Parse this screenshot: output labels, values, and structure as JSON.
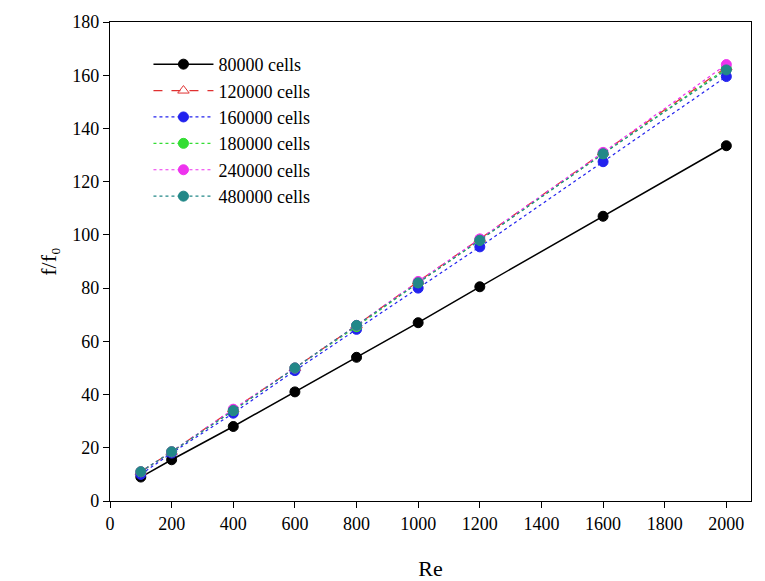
{
  "chart_data": {
    "type": "line",
    "x_label": "Re",
    "y_label": "f/f₀",
    "x": [
      100,
      200,
      400,
      600,
      800,
      1000,
      1200,
      1600,
      2000
    ],
    "series": [
      {
        "name": "80000 cells",
        "color": "#000000",
        "line_style": "solid",
        "marker": "circle",
        "values": [
          9,
          15.5,
          28,
          41,
          54,
          67,
          80.5,
          107,
          133.5
        ]
      },
      {
        "name": "120000 cells",
        "color": "#e03030",
        "line_style": "dash",
        "marker": "triangle-up-open",
        "values": [
          11,
          18.5,
          34.5,
          50,
          66,
          82.5,
          98.5,
          131,
          163
        ]
      },
      {
        "name": "160000 cells",
        "color": "#2222ee",
        "line_style": "dot",
        "marker": "circle",
        "values": [
          10,
          18,
          33,
          49,
          64.5,
          80,
          95.5,
          127.5,
          159.5
        ]
      },
      {
        "name": "180000 cells",
        "color": "#33dd33",
        "line_style": "dot",
        "marker": "circle",
        "values": [
          11,
          18.5,
          34,
          50,
          65.5,
          82,
          98,
          130.5,
          162.5
        ]
      },
      {
        "name": "240000 cells",
        "color": "#ee33ee",
        "line_style": "dot",
        "marker": "circle",
        "values": [
          11,
          18.5,
          34.5,
          50,
          66,
          82.5,
          98.5,
          131,
          164
        ]
      },
      {
        "name": "480000 cells",
        "color": "#228888",
        "line_style": "dot",
        "marker": "circle",
        "values": [
          11,
          18.5,
          34,
          50,
          66,
          82,
          98,
          130.5,
          162
        ]
      }
    ],
    "xlim": [
      0,
      2080
    ],
    "xticks": [
      0,
      200,
      400,
      600,
      800,
      1000,
      1200,
      1400,
      1600,
      1800,
      2000
    ],
    "ylim": [
      0,
      180
    ],
    "yticks": [
      0,
      20,
      40,
      60,
      80,
      100,
      120,
      140,
      160,
      180
    ],
    "grid": false,
    "legend": "upper left"
  }
}
